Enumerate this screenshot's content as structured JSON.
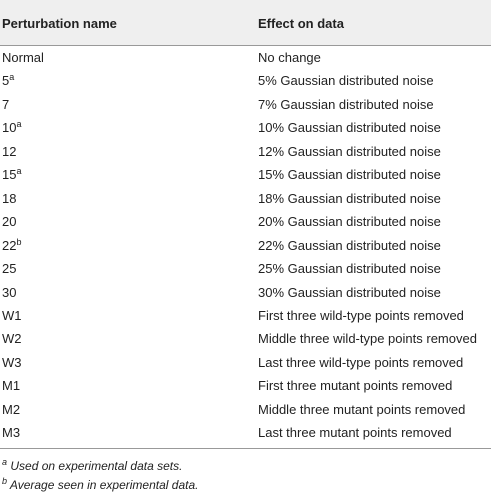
{
  "table": {
    "header": [
      "Perturbation name",
      "Effect on data"
    ],
    "rows": [
      {
        "name": "Normal",
        "effect": "No change"
      },
      {
        "name": "5",
        "note": "a",
        "effect": "5% Gaussian distributed noise"
      },
      {
        "name": "7",
        "effect": "7% Gaussian distributed noise"
      },
      {
        "name": "10",
        "note": "a",
        "effect": "10% Gaussian distributed noise"
      },
      {
        "name": "12",
        "effect": "12% Gaussian distributed noise"
      },
      {
        "name": "15",
        "note": "a",
        "effect": "15% Gaussian distributed noise"
      },
      {
        "name": "18",
        "effect": "18% Gaussian distributed noise"
      },
      {
        "name": "20",
        "effect": "20% Gaussian distributed noise"
      },
      {
        "name": "22",
        "note": "b",
        "effect": "22% Gaussian distributed noise"
      },
      {
        "name": "25",
        "effect": "25% Gaussian distributed noise"
      },
      {
        "name": "30",
        "effect": "30% Gaussian distributed noise"
      },
      {
        "name": "W1",
        "effect": "First three wild-type points removed"
      },
      {
        "name": "W2",
        "effect": "Middle three wild-type points removed"
      },
      {
        "name": "W3",
        "effect": "Last three wild-type points removed"
      },
      {
        "name": "M1",
        "effect": "First three mutant points removed"
      },
      {
        "name": "M2",
        "effect": "Middle three mutant points removed"
      },
      {
        "name": "M3",
        "effect": "Last three mutant points removed"
      }
    ]
  },
  "footnotes": [
    {
      "mark": "a",
      "text": "Used on experimental data sets."
    },
    {
      "mark": "b",
      "text": "Average seen in experimental data."
    }
  ]
}
